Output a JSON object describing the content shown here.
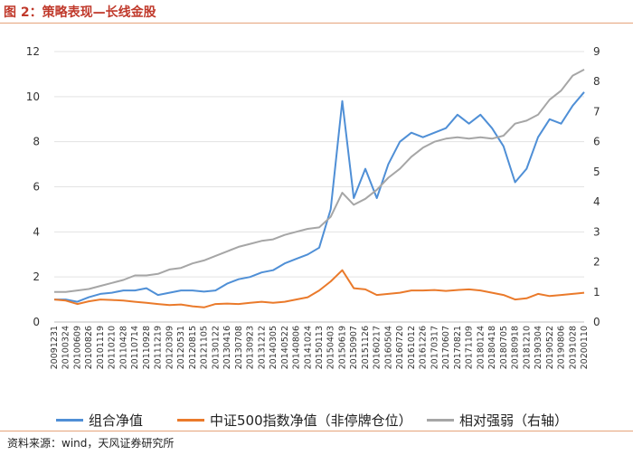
{
  "figure": {
    "title": "图 2：策略表现—长线金股",
    "source": "资料来源：wind，天风证券研究所"
  },
  "colors": {
    "title": "#c0392b",
    "rule": "#e6a37a",
    "portfolio": "#4f8fd6",
    "csi500": "#ea7a2b",
    "relative": "#a6a6a6"
  },
  "chart_data": {
    "type": "line",
    "title": "",
    "xlabel": "",
    "ylabel": "",
    "y_left_range": [
      0,
      12
    ],
    "y_left_ticks": [
      0,
      2,
      4,
      6,
      8,
      10,
      12
    ],
    "y_right_range": [
      0,
      9
    ],
    "y_right_ticks": [
      0,
      1,
      2,
      3,
      4,
      5,
      6,
      7,
      8,
      9
    ],
    "grid": "horizontal",
    "legend_position": "bottom",
    "categories": [
      "20091231",
      "20100324",
      "20100609",
      "20100826",
      "20101119",
      "20110210",
      "20110428",
      "20110714",
      "20110928",
      "20111219",
      "20120309",
      "20120531",
      "20120815",
      "20121105",
      "20130122",
      "20130416",
      "20130708",
      "20130923",
      "20131212",
      "20140305",
      "20140522",
      "20140806",
      "20141024",
      "20150113",
      "20150403",
      "20150619",
      "20150907",
      "20151126",
      "20160217",
      "20160504",
      "20160720",
      "20161012",
      "20161226",
      "20170317",
      "20170607",
      "20170821",
      "20171109",
      "20180124",
      "20180418",
      "20180705",
      "20180918",
      "20181210",
      "20190304",
      "20190522",
      "20190806",
      "20191028",
      "20200110"
    ],
    "series": [
      {
        "name": "组合净值",
        "axis": "left",
        "values": [
          1.0,
          1.0,
          0.9,
          1.1,
          1.25,
          1.3,
          1.4,
          1.4,
          1.5,
          1.2,
          1.3,
          1.4,
          1.4,
          1.35,
          1.4,
          1.7,
          1.9,
          2.0,
          2.2,
          2.3,
          2.6,
          2.8,
          3.0,
          3.3,
          5.0,
          9.8,
          5.5,
          6.8,
          5.5,
          7.0,
          8.0,
          8.4,
          8.2,
          8.4,
          8.6,
          9.2,
          8.8,
          9.2,
          8.6,
          7.8,
          6.2,
          6.8,
          8.2,
          9.0,
          8.8,
          9.6,
          10.2
        ]
      },
      {
        "name": "中证500指数净值（非停牌仓位）",
        "axis": "left",
        "values": [
          1.0,
          0.95,
          0.8,
          0.92,
          1.0,
          0.98,
          0.95,
          0.9,
          0.85,
          0.8,
          0.75,
          0.78,
          0.7,
          0.65,
          0.8,
          0.82,
          0.8,
          0.85,
          0.9,
          0.85,
          0.9,
          1.0,
          1.1,
          1.4,
          1.8,
          2.3,
          1.5,
          1.45,
          1.2,
          1.25,
          1.3,
          1.4,
          1.4,
          1.42,
          1.38,
          1.42,
          1.45,
          1.4,
          1.3,
          1.2,
          1.0,
          1.05,
          1.25,
          1.15,
          1.2,
          1.25,
          1.3
        ]
      },
      {
        "name": "相对强弱（右轴）",
        "axis": "right",
        "values": [
          1.0,
          1.0,
          1.05,
          1.1,
          1.2,
          1.3,
          1.4,
          1.55,
          1.55,
          1.6,
          1.75,
          1.8,
          1.95,
          2.05,
          2.2,
          2.35,
          2.5,
          2.6,
          2.7,
          2.75,
          2.9,
          3.0,
          3.1,
          3.15,
          3.5,
          4.3,
          3.9,
          4.1,
          4.4,
          4.8,
          5.1,
          5.5,
          5.8,
          6.0,
          6.1,
          6.15,
          6.1,
          6.15,
          6.1,
          6.2,
          6.6,
          6.7,
          6.9,
          7.4,
          7.7,
          8.2,
          8.4
        ]
      }
    ]
  }
}
